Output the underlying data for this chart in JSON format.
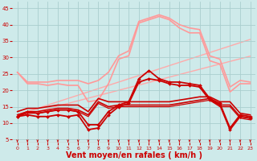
{
  "x": [
    0,
    1,
    2,
    3,
    4,
    5,
    6,
    7,
    8,
    9,
    10,
    11,
    12,
    13,
    14,
    15,
    16,
    17,
    18,
    19,
    20,
    21,
    22,
    23
  ],
  "background_color": "#ceeaea",
  "grid_color": "#aacece",
  "xlabel": "Vent moyen/en rafales ( km/h )",
  "xlabel_color": "#cc0000",
  "xlabel_fontsize": 7,
  "tick_color": "#cc0000",
  "ylim": [
    4,
    47
  ],
  "yticks": [
    5,
    10,
    15,
    20,
    25,
    30,
    35,
    40,
    45
  ],
  "lines": [
    {
      "y": [
        25.5,
        22.5,
        22.5,
        22.5,
        23.0,
        23.0,
        23.0,
        22.0,
        23.0,
        25.5,
        30.5,
        32.0,
        41.0,
        42.0,
        43.0,
        42.0,
        40.0,
        39.0,
        38.5,
        30.5,
        29.5,
        21.0,
        23.0,
        22.5
      ],
      "color": "#ff9999",
      "lw": 1.2,
      "marker": null,
      "zorder": 2
    },
    {
      "y": [
        25.5,
        22.0,
        22.0,
        21.5,
        22.0,
        21.5,
        21.5,
        16.5,
        17.0,
        22.0,
        29.5,
        30.5,
        40.5,
        41.5,
        42.5,
        41.5,
        39.0,
        37.5,
        37.5,
        29.0,
        28.0,
        19.5,
        22.0,
        22.0
      ],
      "color": "#ff9999",
      "lw": 1.2,
      "marker": null,
      "zorder": 2
    },
    {
      "y": [
        12.5,
        13.5,
        14.5,
        15.5,
        16.5,
        17.5,
        18.5,
        19.5,
        20.5,
        21.5,
        22.5,
        23.5,
        24.5,
        25.5,
        26.5,
        27.5,
        28.5,
        29.5,
        30.5,
        31.5,
        32.5,
        33.5,
        34.5,
        35.5
      ],
      "color": "#ffaaaa",
      "lw": 1.0,
      "marker": null,
      "zorder": 1
    },
    {
      "y": [
        12.0,
        12.8,
        13.6,
        14.4,
        15.2,
        16.0,
        16.8,
        17.6,
        18.4,
        19.2,
        20.0,
        20.8,
        21.6,
        22.4,
        23.2,
        24.0,
        24.8,
        25.6,
        26.4,
        27.2,
        28.0,
        28.8,
        29.6,
        30.4
      ],
      "color": "#ffaaaa",
      "lw": 1.0,
      "marker": null,
      "zorder": 1
    },
    {
      "y": [
        12.0,
        13.5,
        13.0,
        13.5,
        14.0,
        14.0,
        13.5,
        9.5,
        9.5,
        13.5,
        15.5,
        16.5,
        23.5,
        26.0,
        23.5,
        22.5,
        22.5,
        22.0,
        21.5,
        17.5,
        16.0,
        8.5,
        12.5,
        12.0
      ],
      "color": "#cc0000",
      "lw": 1.3,
      "marker": "D",
      "markersize": 2.0,
      "zorder": 5
    },
    {
      "y": [
        12.0,
        12.5,
        12.0,
        12.0,
        12.5,
        12.0,
        12.5,
        8.0,
        8.5,
        12.5,
        15.0,
        16.0,
        22.5,
        23.5,
        23.0,
        22.0,
        21.5,
        21.5,
        21.0,
        17.0,
        15.5,
        8.0,
        12.0,
        11.5
      ],
      "color": "#cc0000",
      "lw": 1.3,
      "marker": "D",
      "markersize": 2.0,
      "zorder": 5
    },
    {
      "y": [
        13.5,
        14.5,
        14.5,
        15.0,
        15.5,
        15.5,
        15.5,
        13.5,
        17.5,
        16.5,
        16.5,
        16.5,
        16.5,
        16.5,
        16.5,
        16.5,
        17.0,
        17.5,
        18.0,
        18.0,
        16.5,
        16.5,
        13.0,
        12.5
      ],
      "color": "#cc0000",
      "lw": 1.2,
      "marker": null,
      "zorder": 4
    },
    {
      "y": [
        12.5,
        13.5,
        13.5,
        14.0,
        14.5,
        14.5,
        14.0,
        12.5,
        16.5,
        15.0,
        15.5,
        15.5,
        15.5,
        15.5,
        15.5,
        15.5,
        16.0,
        16.5,
        17.0,
        17.5,
        15.5,
        15.5,
        12.0,
        11.5
      ],
      "color": "#cc0000",
      "lw": 1.2,
      "marker": null,
      "zorder": 4
    },
    {
      "y": [
        12.0,
        13.0,
        13.0,
        13.5,
        14.0,
        14.0,
        13.5,
        12.0,
        16.0,
        14.5,
        15.0,
        15.0,
        15.0,
        15.0,
        15.0,
        15.0,
        15.5,
        16.0,
        16.5,
        17.0,
        15.0,
        15.0,
        11.5,
        11.0
      ],
      "color": "#cc0000",
      "lw": 0.9,
      "marker": null,
      "zorder": 3
    }
  ]
}
